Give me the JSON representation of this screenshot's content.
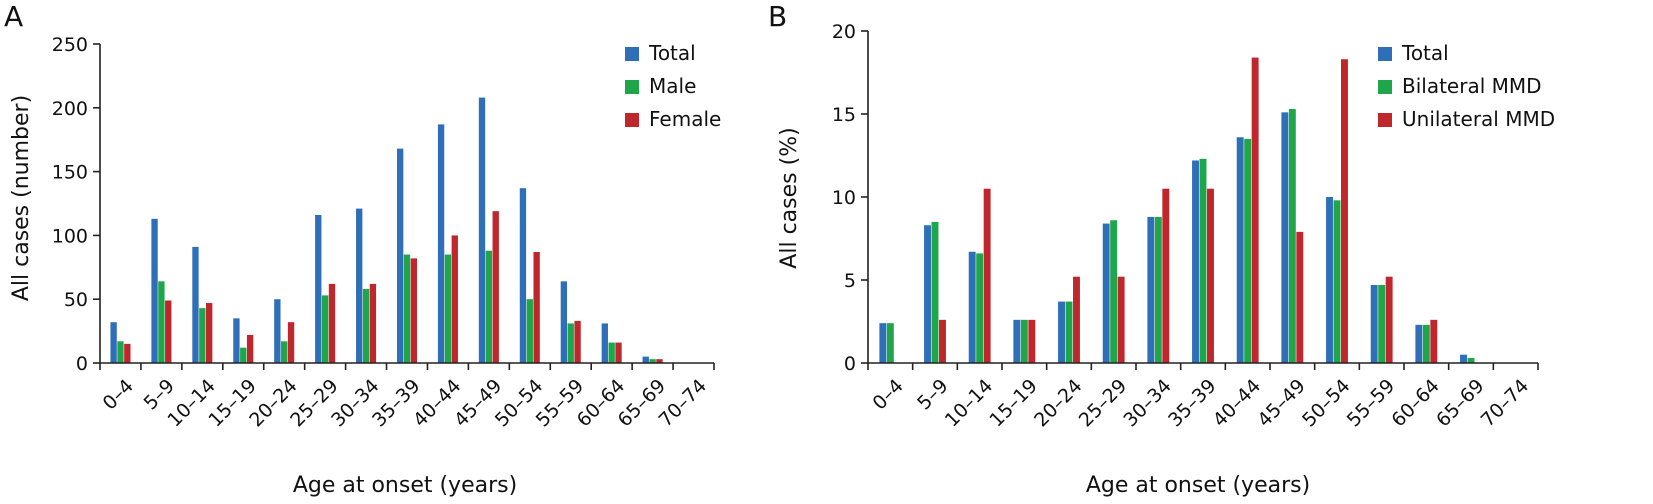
{
  "chart_data": [
    {
      "panel": "A",
      "type": "bar",
      "categories": [
        "0–4",
        "5–9",
        "10–14",
        "15–19",
        "20–24",
        "25–29",
        "30–34",
        "35–39",
        "40–44",
        "45–49",
        "50–54",
        "55–59",
        "60–64",
        "65–69",
        "70–74"
      ],
      "series": [
        {
          "name": "Total",
          "color": "#2e6fb7",
          "values": [
            32,
            113,
            91,
            35,
            50,
            116,
            121,
            168,
            187,
            208,
            137,
            64,
            31,
            5,
            0
          ]
        },
        {
          "name": "Male",
          "color": "#1fa64a",
          "values": [
            17,
            64,
            43,
            12,
            17,
            53,
            58,
            85,
            85,
            88,
            50,
            31,
            16,
            3,
            0
          ]
        },
        {
          "name": "Female",
          "color": "#c0272d",
          "values": [
            15,
            49,
            47,
            22,
            32,
            62,
            62,
            82,
            100,
            119,
            87,
            33,
            16,
            3,
            0
          ]
        }
      ],
      "xlabel": "Age at onset (years)",
      "ylabel": "All cases (number)",
      "ylim": [
        0,
        250
      ],
      "yticks": [
        0,
        50,
        100,
        150,
        200,
        250
      ],
      "legend": "top-right",
      "grid": false
    },
    {
      "panel": "B",
      "type": "bar",
      "categories": [
        "0–4",
        "5–9",
        "10–14",
        "15–19",
        "20–24",
        "25–29",
        "30–34",
        "35–39",
        "40–44",
        "45–49",
        "50–54",
        "55–59",
        "60–64",
        "65–69",
        "70–74"
      ],
      "series": [
        {
          "name": "Total",
          "color": "#2e6fb7",
          "values": [
            2.4,
            8.3,
            6.7,
            2.6,
            3.7,
            8.4,
            8.8,
            12.2,
            13.6,
            15.1,
            10.0,
            4.7,
            2.3,
            0.5,
            0
          ]
        },
        {
          "name": "Bilateral MMD",
          "color": "#1fa64a",
          "values": [
            2.4,
            8.5,
            6.6,
            2.6,
            3.7,
            8.6,
            8.8,
            12.3,
            13.5,
            15.3,
            9.8,
            4.7,
            2.3,
            0.3,
            0
          ]
        },
        {
          "name": "Unilateral MMD",
          "color": "#c0272d",
          "values": [
            0,
            2.6,
            10.5,
            2.6,
            5.2,
            5.2,
            10.5,
            10.5,
            18.4,
            7.9,
            18.3,
            5.2,
            2.6,
            0,
            0
          ]
        }
      ],
      "xlabel": "Age at onset (years)",
      "ylabel": "All cases (%)",
      "ylim": [
        0,
        20
      ],
      "yticks": [
        0,
        5,
        10,
        15,
        20
      ],
      "legend": "top-right",
      "grid": false
    }
  ]
}
